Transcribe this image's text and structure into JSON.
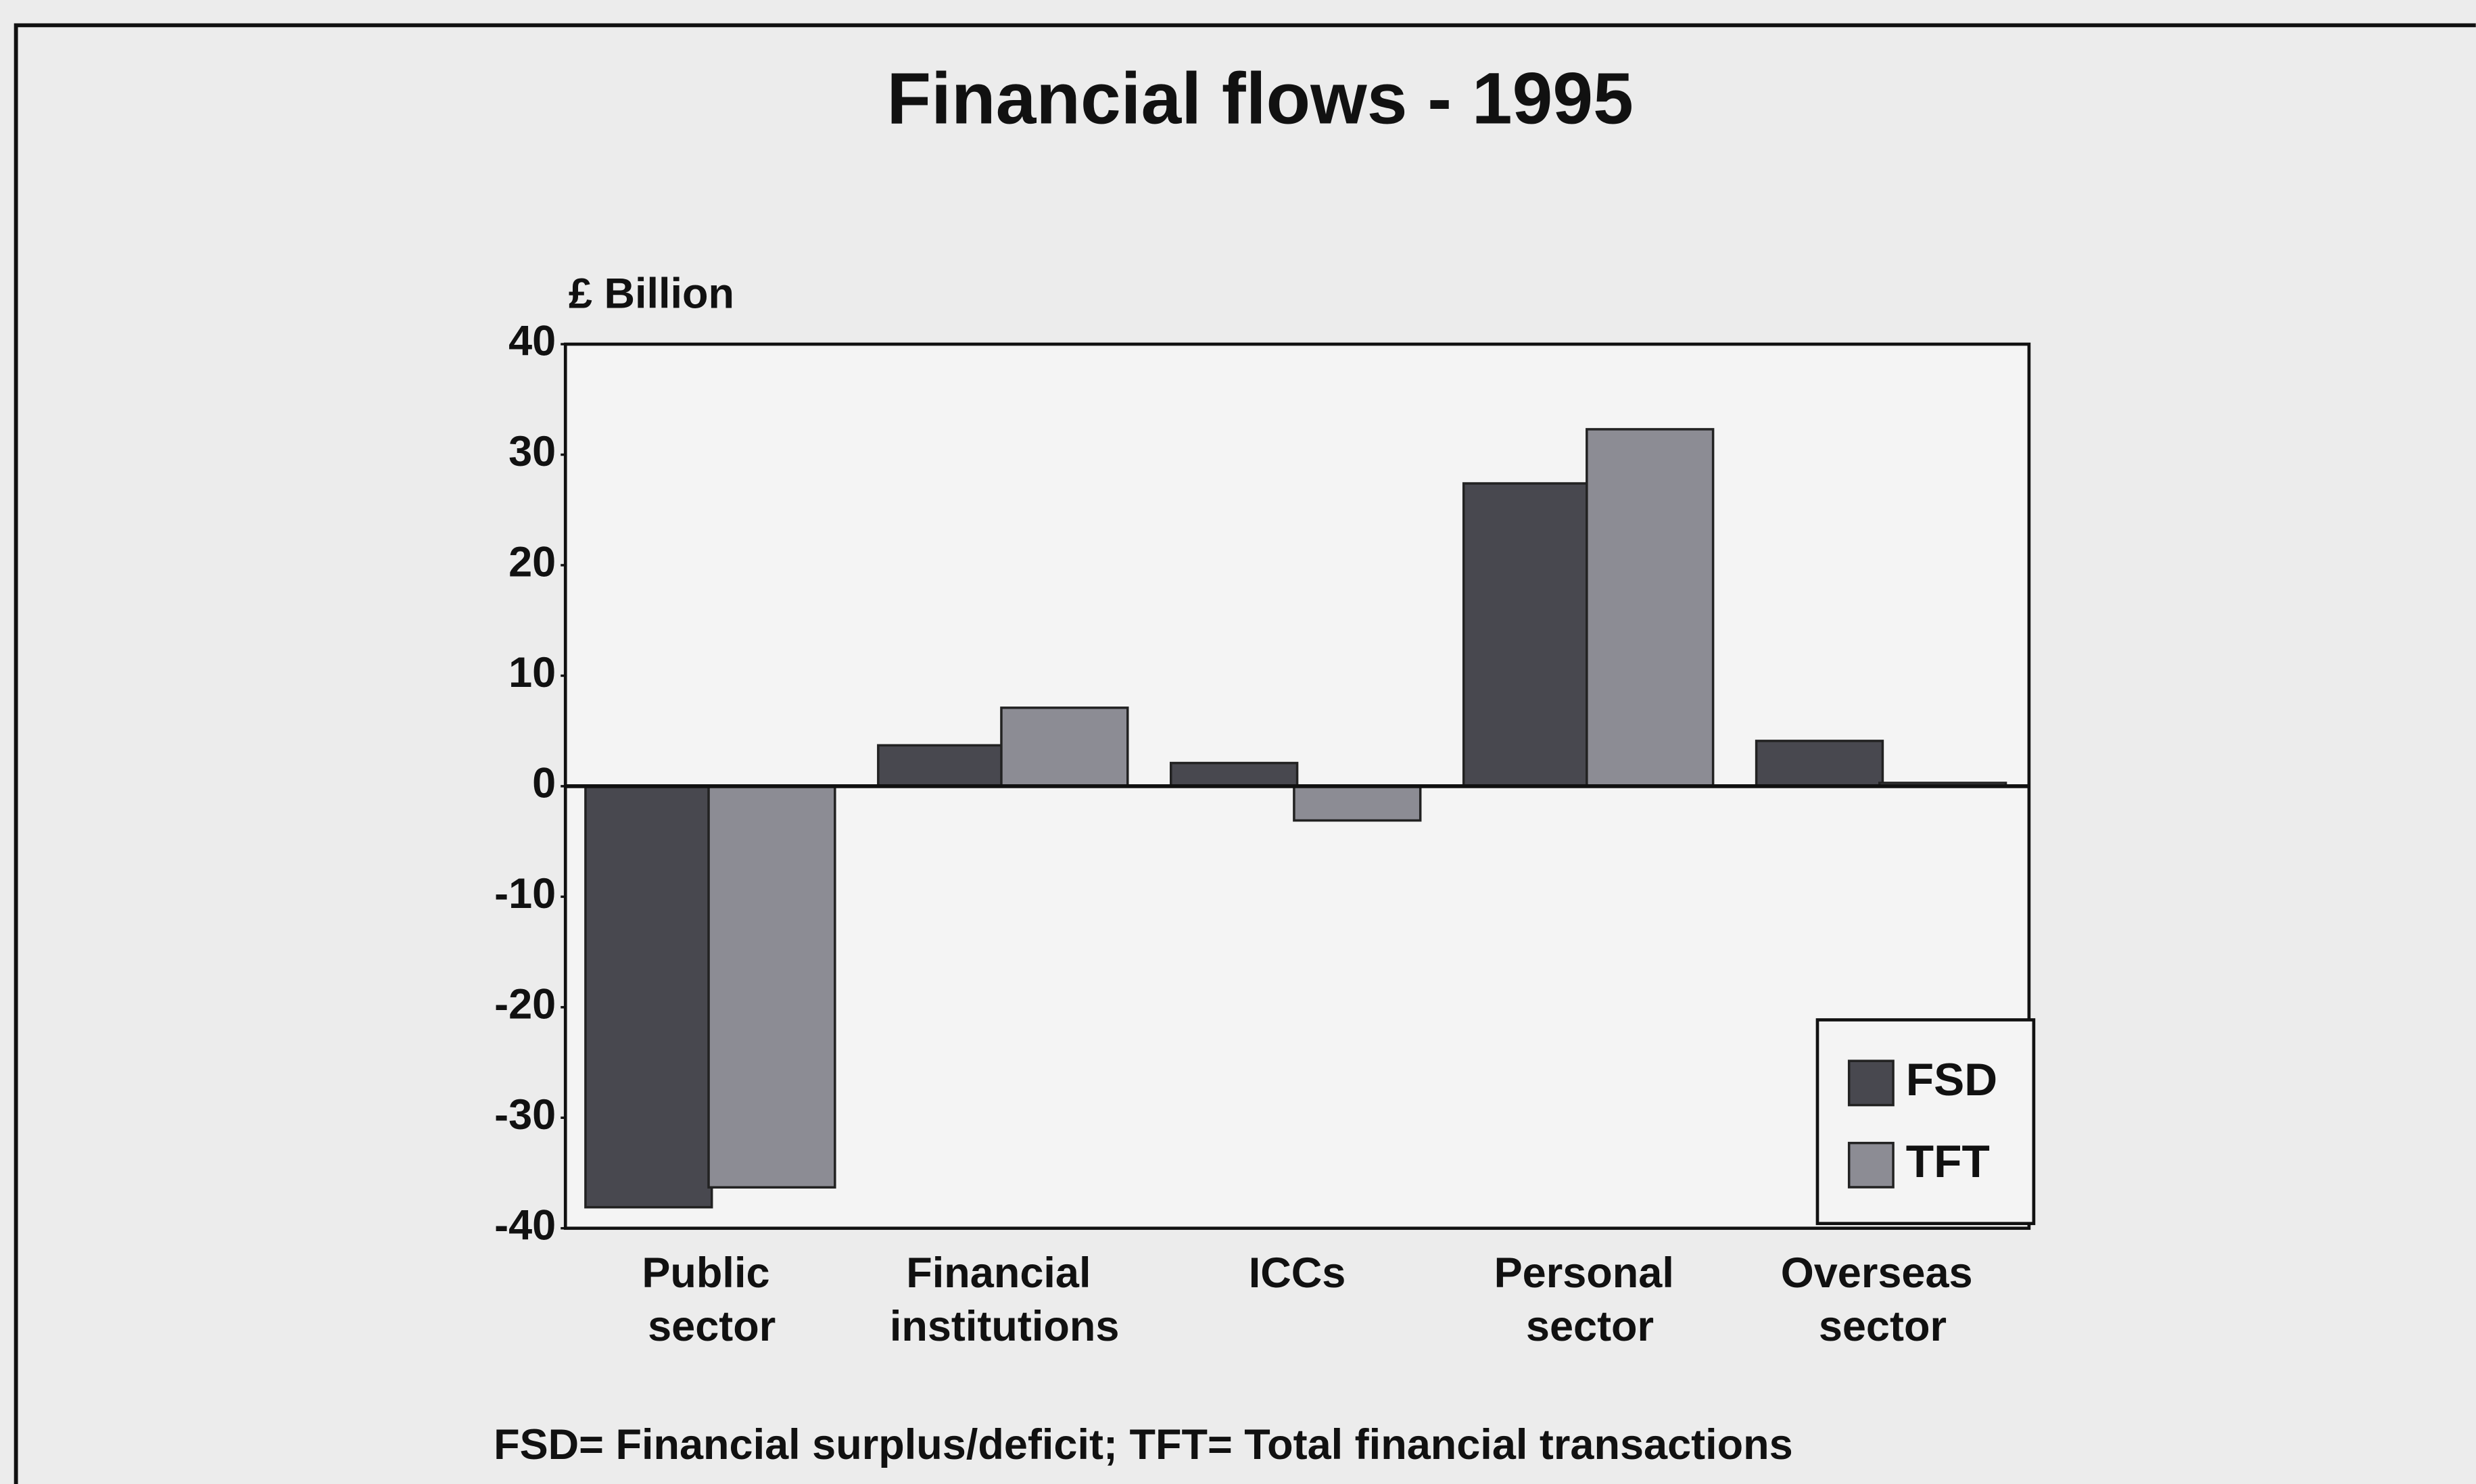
{
  "chart_data": {
    "type": "bar",
    "title": "Financial flows - 1995",
    "y_label": "£ Billion",
    "categories": [
      "Public sector",
      "Financial institutions",
      "ICCs",
      "Personal sector",
      "Overseas sector"
    ],
    "series": [
      {
        "name": "FSD",
        "color": "#48484f",
        "values": [
          -38.1,
          3.7,
          2.1,
          27.4,
          4.1
        ]
      },
      {
        "name": "TFT",
        "color": "#8c8c94",
        "values": [
          -36.3,
          7.1,
          -3.1,
          32.3,
          0.3
        ]
      }
    ],
    "ylim": [
      -40,
      40
    ],
    "yticks": [
      -40,
      -30,
      -20,
      -10,
      0,
      10,
      20,
      30,
      40
    ],
    "legend": "lower right",
    "footnote": "FSD= Financial surplus/deficit; TFT= Total financial transactions"
  }
}
